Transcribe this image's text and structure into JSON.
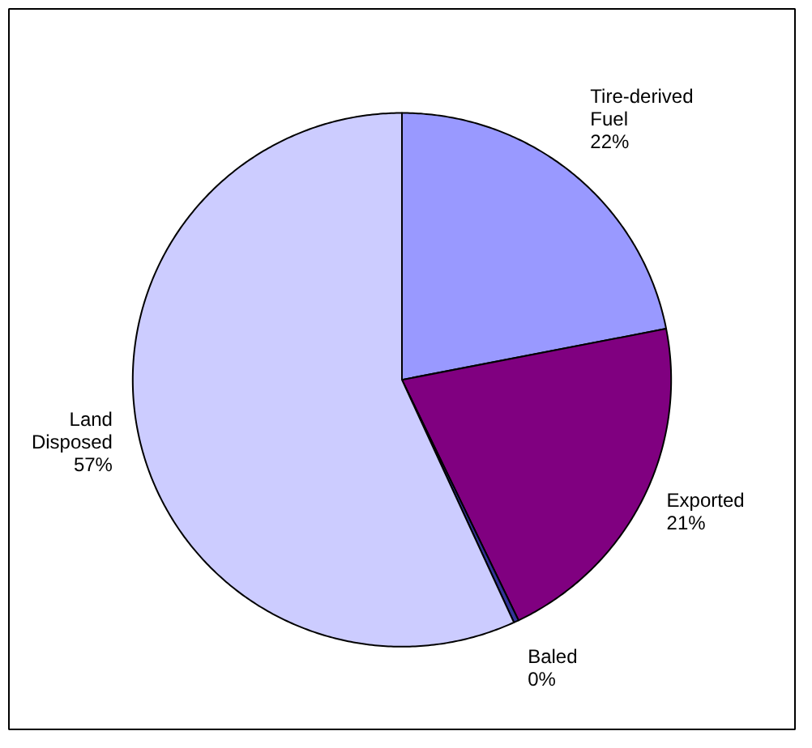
{
  "chart_data": {
    "type": "pie",
    "categories": [
      "Tire-derived Fuel",
      "Exported",
      "Baled",
      "Land Disposed"
    ],
    "values": [
      22,
      21,
      0.3,
      57
    ],
    "value_labels": [
      "22%",
      "21%",
      "0%",
      "57%"
    ],
    "colors": [
      "#9999ff",
      "#800080",
      "#333399",
      "#ccccff"
    ]
  }
}
